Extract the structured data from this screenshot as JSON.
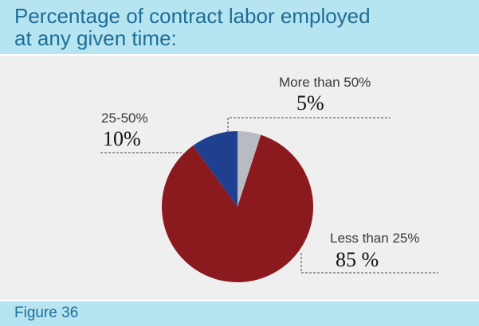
{
  "title": "Percentage of contract labor employed at any given time:",
  "title_lines": [
    "Percentage of contract labor employed",
    "at any given time:"
  ],
  "footer": {
    "figure_label": "Figure 36"
  },
  "colors": {
    "background": "#efefef",
    "band": "#b7e4f1",
    "title_text": "#1d6e97",
    "slice_less_than_25": "#8b1a1e",
    "slice_25_50": "#1f3f8f",
    "slice_more_than_50": "#b8bcc2"
  },
  "chart_data": {
    "type": "pie",
    "title": "Percentage of contract labor employed at any given time:",
    "slices": [
      {
        "label": "More than 50%",
        "value": 5,
        "display": "5%"
      },
      {
        "label": "Less than 25%",
        "value": 85,
        "display": "85 %"
      },
      {
        "label": "25-50%",
        "value": 10,
        "display": "10%"
      }
    ]
  }
}
